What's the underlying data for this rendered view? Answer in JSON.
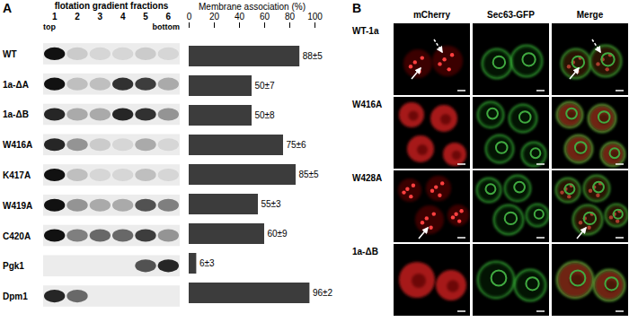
{
  "figure": {
    "A": {
      "label": "A",
      "header": "flotation gradient fractions",
      "top_label": "top",
      "bottom_label": "bottom",
      "fractions": [
        "1",
        "2",
        "3",
        "4",
        "5",
        "6"
      ],
      "band_intensity": [
        [
          1.0,
          0.15,
          0.1,
          0.1,
          0.15,
          0.1
        ],
        [
          1.0,
          0.2,
          0.2,
          0.85,
          0.8,
          0.3
        ],
        [
          0.9,
          0.3,
          0.3,
          0.9,
          0.85,
          0.4
        ],
        [
          0.9,
          0.4,
          0.15,
          0.1,
          0.3,
          0.1
        ],
        [
          1.0,
          0.2,
          0.1,
          0.1,
          0.2,
          0.1
        ],
        [
          1.0,
          0.4,
          0.3,
          0.3,
          0.7,
          0.5
        ],
        [
          1.0,
          0.5,
          0.6,
          0.6,
          0.8,
          0.4
        ],
        [
          0.0,
          0.0,
          0.0,
          0.0,
          0.7,
          0.9
        ],
        [
          0.9,
          0.6,
          0.0,
          0.0,
          0.0,
          0.0
        ]
      ]
    },
    "B": {
      "label": "B",
      "columns": [
        "mCherry",
        "Sec63-GFP",
        "Merge"
      ],
      "rows": [
        "WT-1a",
        "W416A",
        "W428A",
        "1a-ΔB"
      ]
    }
  },
  "chart_data": {
    "type": "bar",
    "orientation": "horizontal",
    "x_label": "Membrane association (%)",
    "categories": [
      "WT",
      "1a-ΔA",
      "1a-ΔB",
      "W416A",
      "K417A",
      "W419A",
      "C420A",
      "Pgk1",
      "Dpm1"
    ],
    "values": [
      88,
      50,
      50,
      75,
      85,
      55,
      60,
      6,
      96
    ],
    "value_labels": [
      "88±5",
      "50±7",
      "50±8",
      "75±6",
      "85±5",
      "55±3",
      "60±9",
      "6±3",
      "96±2"
    ],
    "xlim": [
      0,
      100
    ],
    "xticks": [
      0,
      20,
      40,
      60,
      80,
      100
    ],
    "color": "#3c3c3c",
    "data_labels": true
  }
}
